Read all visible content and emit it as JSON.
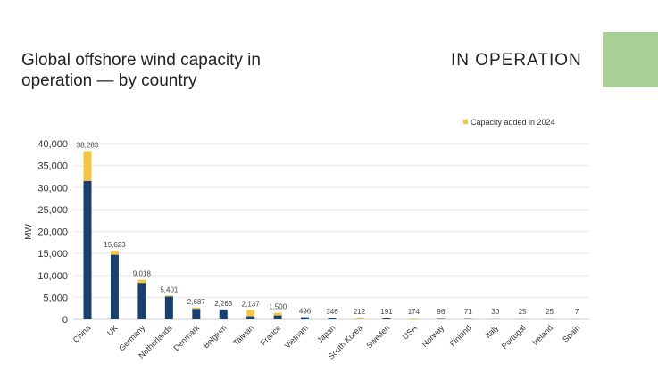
{
  "header": {
    "title": "Global offshore wind capacity in operation — by country",
    "badge": "IN OPERATION"
  },
  "chart_data": {
    "type": "bar",
    "stacked": true,
    "title": "",
    "ylabel": "MW",
    "xlabel": "",
    "ylim": [
      0,
      40000
    ],
    "yticks": [
      0,
      5000,
      10000,
      15000,
      20000,
      25000,
      30000,
      35000,
      40000
    ],
    "ytick_labels": [
      "0",
      "5,000",
      "10,000",
      "15,000",
      "20,000",
      "25,000",
      "30,000",
      "35,000",
      "40,000"
    ],
    "grid": true,
    "legend_placement": "top-right",
    "categories": [
      "China",
      "UK",
      "Germany",
      "Netherlands",
      "Denmark",
      "Belgium",
      "Taiwan",
      "France",
      "Vietnam",
      "Japan",
      "South Korea",
      "Sweden",
      "USA",
      "Norway",
      "Finland",
      "Italy",
      "Portugal",
      "Ireland",
      "Spain"
    ],
    "totals": [
      38283,
      15623,
      9018,
      5401,
      2687,
      2263,
      2137,
      1500,
      496,
      346,
      212,
      191,
      174,
      96,
      71,
      30,
      25,
      25,
      7
    ],
    "total_labels": [
      "38,283",
      "15,623",
      "9,018",
      "5,401",
      "2,687",
      "2,263",
      "2,137",
      "1,500",
      "496",
      "346",
      "212",
      "191",
      "174",
      "96",
      "71",
      "30",
      "25",
      "25",
      "7"
    ],
    "series": [
      {
        "values": [
          31500,
          14700,
          8300,
          5200,
          2400,
          2263,
          700,
          900,
          496,
          346,
          0,
          191,
          0,
          96,
          71,
          30,
          25,
          25,
          7
        ],
        "color": "#17406d"
      },
      {
        "name": "Capacity added in 2024",
        "values": [
          6783,
          923,
          718,
          201,
          287,
          0,
          1437,
          600,
          0,
          0,
          212,
          0,
          174,
          0,
          0,
          0,
          0,
          0,
          0
        ],
        "color": "#f5c542"
      }
    ]
  }
}
